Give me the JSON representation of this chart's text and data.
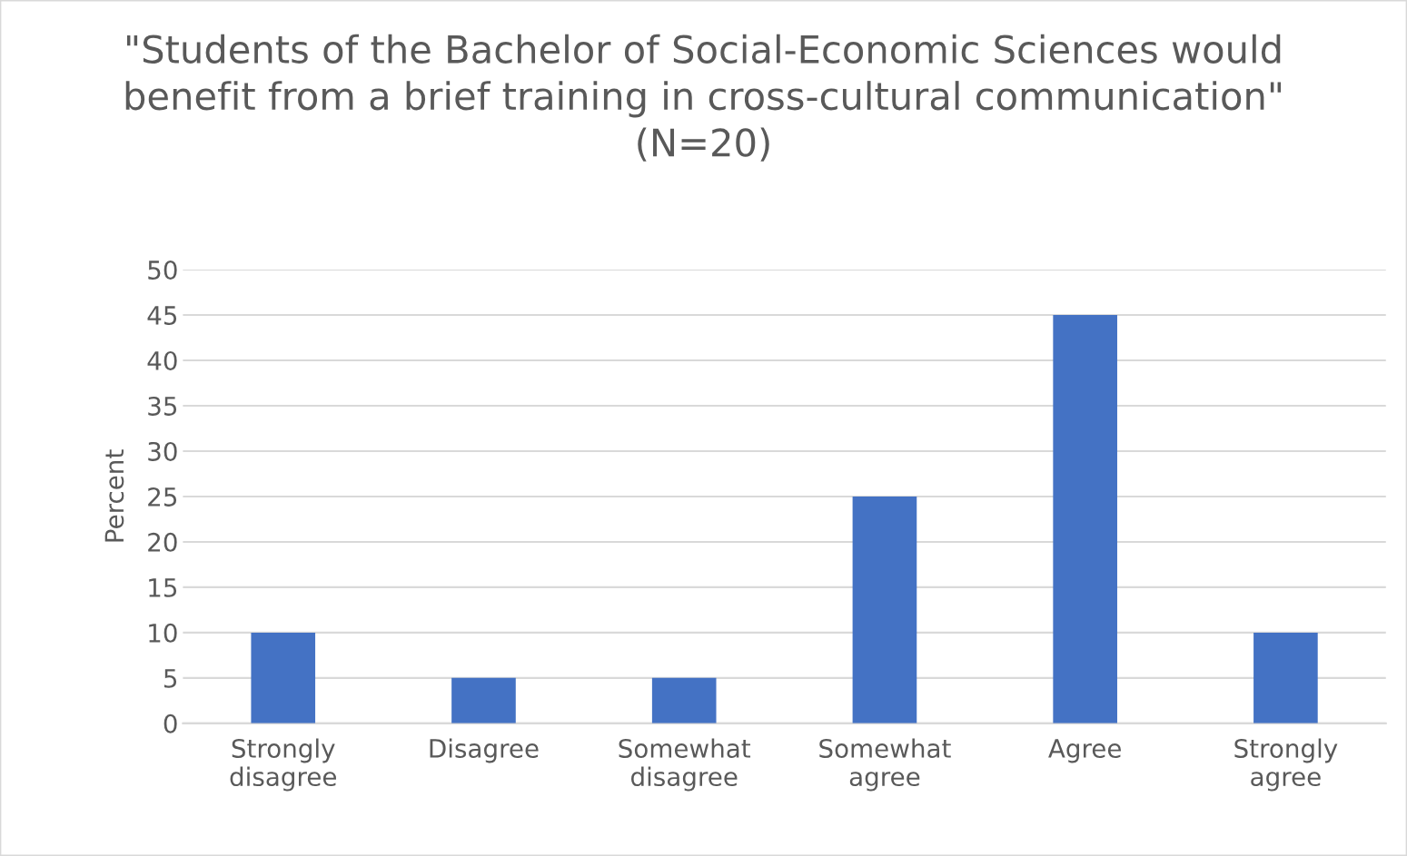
{
  "chart_data": {
    "type": "bar",
    "title": "\"Students of the Bachelor of Social-Economic Sciences would benefit from a brief training in cross-cultural communication\" (N=20)",
    "ylabel": "Percent",
    "categories": [
      "Strongly disagree",
      "Disagree",
      "Somewhat disagree",
      "Somewhat agree",
      "Agree",
      "Strongly agree"
    ],
    "values": [
      10,
      5,
      5,
      25,
      45,
      10
    ],
    "color": "#4472c4",
    "ylim": [
      0,
      50
    ],
    "yticks": [
      0,
      5,
      10,
      15,
      20,
      25,
      30,
      35,
      40,
      45,
      50
    ],
    "grid": "y"
  }
}
